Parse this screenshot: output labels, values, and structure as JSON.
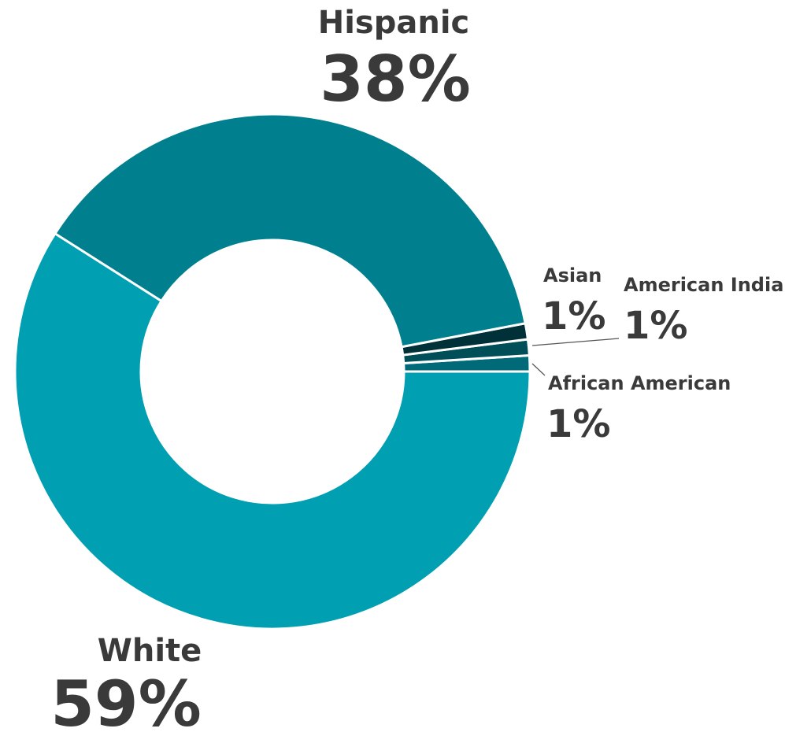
{
  "chart_data": {
    "type": "pie",
    "title": "",
    "slices": [
      {
        "label": "White",
        "value": 59,
        "display": "59%",
        "color": "#009fb1"
      },
      {
        "label": "Hispanic",
        "value": 38,
        "display": "38%",
        "color": "#00808f"
      },
      {
        "label": "Asian",
        "value": 1,
        "display": "1%",
        "color": "#003038"
      },
      {
        "label": "American Indian",
        "value": 1,
        "display": "1%",
        "color": "#004e58"
      },
      {
        "label": "African American",
        "value": 1,
        "display": "1%",
        "color": "#006a78"
      }
    ]
  }
}
